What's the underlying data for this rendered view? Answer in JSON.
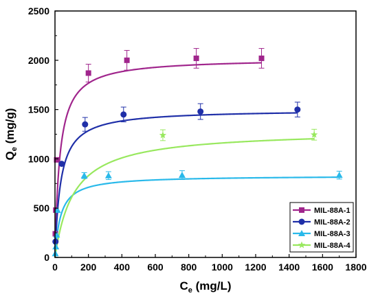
{
  "chart_data": {
    "type": "scatter",
    "xlabel": {
      "main": "C",
      "sub": "e",
      "unit": " (mg/L)"
    },
    "ylabel": {
      "main": "Q",
      "sub": "e",
      "unit": " (mg/g)"
    },
    "xlim": [
      0,
      1800
    ],
    "ylim": [
      0,
      2500
    ],
    "xticks": [
      "0",
      "200",
      "400",
      "600",
      "800",
      "1000",
      "1200",
      "1400",
      "1600",
      "1800"
    ],
    "yticks": [
      "0",
      "500",
      "1000",
      "1500",
      "2000",
      "2500"
    ],
    "legend_position": "bottom-right",
    "series": [
      {
        "name": "MIL-88A-1",
        "color": "#a0258c",
        "marker": "square",
        "points": [
          [
            2,
            240
          ],
          [
            5,
            480
          ],
          [
            10,
            990
          ],
          [
            200,
            1870
          ],
          [
            430,
            2000
          ],
          [
            845,
            2020
          ],
          [
            1235,
            2020
          ]
        ],
        "errors": [
          0,
          0,
          0,
          90,
          100,
          100,
          100
        ],
        "fit": {
          "qmax": 2020,
          "k": 0.035
        }
      },
      {
        "name": "MIL-88A-2",
        "color": "#1f2fa8",
        "marker": "circle",
        "points": [
          [
            3,
            160
          ],
          [
            40,
            950
          ],
          [
            180,
            1350
          ],
          [
            410,
            1450
          ],
          [
            870,
            1480
          ],
          [
            1450,
            1500
          ]
        ],
        "errors": [
          0,
          0,
          70,
          75,
          80,
          75
        ],
        "fit": {
          "qmax": 1500,
          "k": 0.03
        }
      },
      {
        "name": "MIL-88A-3",
        "color": "#29b9ea",
        "marker": "triangle",
        "points": [
          [
            2,
            40
          ],
          [
            5,
            110
          ],
          [
            10,
            230
          ],
          [
            15,
            480
          ],
          [
            175,
            830
          ],
          [
            320,
            830
          ],
          [
            760,
            835
          ],
          [
            1700,
            835
          ]
        ],
        "errors": [
          0,
          0,
          0,
          0,
          30,
          40,
          45,
          40
        ],
        "fit": {
          "qmax": 830,
          "k": 0.03
        }
      },
      {
        "name": "MIL-88A-4",
        "color": "#98e85e",
        "marker": "star",
        "points": [
          [
            645,
            1240
          ],
          [
            1550,
            1245
          ]
        ],
        "errors": [
          55,
          55
        ],
        "fit": {
          "qmax": 1290,
          "k": 0.009
        }
      }
    ]
  }
}
